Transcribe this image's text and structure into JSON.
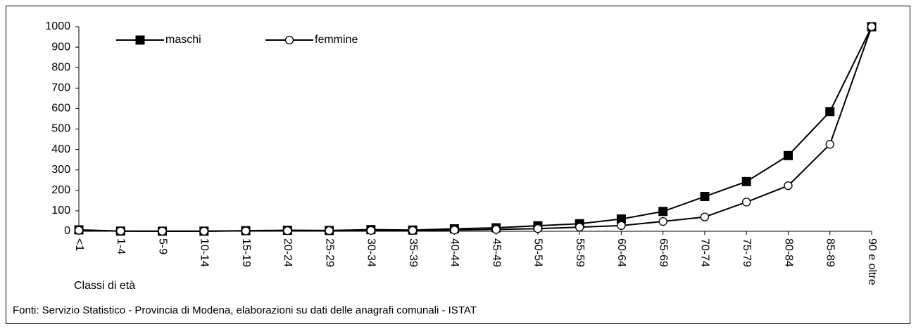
{
  "chart_data": {
    "type": "line",
    "x_label": "Classi di età",
    "source": "Fonti: Servizio Statistico - Provincia di Modena, elaborazioni su dati delle anagrafi comunali - ISTAT",
    "categories": [
      "<1",
      "1-4",
      "5-9",
      "10-14",
      "15-19",
      "20-24",
      "25-29",
      "30-34",
      "35-39",
      "40-44",
      "45-49",
      "50-54",
      "55-59",
      "60-64",
      "65-69",
      "70-74",
      "75-79",
      "80-84",
      "85-89",
      "90 e oltre"
    ],
    "series": [
      {
        "name": "maschi",
        "color": "#000000",
        "marker": "square",
        "values": [
          7,
          1,
          0.5,
          0.5,
          3,
          5,
          4,
          8,
          6,
          12,
          17,
          27,
          37,
          60,
          97,
          170,
          243,
          370,
          585,
          1000
        ]
      },
      {
        "name": "femmine",
        "color": "#000000",
        "marker": "circle",
        "values": [
          5,
          1,
          0.5,
          0.5,
          2,
          3,
          3,
          4,
          4,
          6,
          9,
          13,
          20,
          28,
          48,
          70,
          143,
          223,
          425,
          1000
        ]
      }
    ],
    "ylim": [
      0,
      1000
    ],
    "yticks": [
      0,
      100,
      200,
      300,
      400,
      500,
      600,
      700,
      800,
      900,
      1000
    ],
    "grid": false
  }
}
